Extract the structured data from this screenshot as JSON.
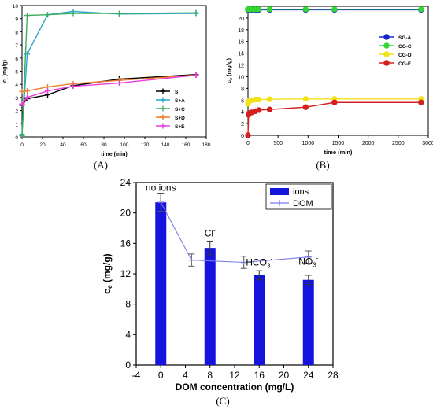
{
  "panel_labels": {
    "a": "(A)",
    "b": "(B)",
    "c": "(C)"
  },
  "chart_data": [
    {
      "id": "A",
      "type": "line",
      "xlabel": "time (min)",
      "ylabel_main": "c",
      "ylabel_sub": "t",
      "ylabel_tail": " (mg/g)",
      "xlim": [
        0,
        180
      ],
      "ylim": [
        0,
        10
      ],
      "xticks": [
        "0",
        "20",
        "40",
        "60",
        "80",
        "100",
        "120",
        "140",
        "160",
        "180"
      ],
      "yticks": [
        "0",
        "1",
        "2",
        "3",
        "4",
        "5",
        "6",
        "7",
        "8",
        "9",
        "10"
      ],
      "legend_position": "middle-right",
      "series": [
        {
          "name": "S",
          "color": "#000000",
          "x": [
            0,
            5,
            25,
            50,
            95,
            170
          ],
          "y": [
            2.4,
            2.9,
            3.2,
            3.9,
            4.4,
            4.75
          ]
        },
        {
          "name": "S+A",
          "color": "#2aa7c9",
          "x": [
            0,
            5,
            25,
            50,
            95,
            170
          ],
          "y": [
            0.2,
            6.3,
            9.3,
            9.55,
            9.35,
            9.4
          ]
        },
        {
          "name": "S+C",
          "color": "#3cad5c",
          "x": [
            0,
            5,
            25,
            50,
            95,
            170
          ],
          "y": [
            0.1,
            9.25,
            9.3,
            9.4,
            9.4,
            9.45
          ]
        },
        {
          "name": "S+D",
          "color": "#f07d2a",
          "x": [
            0,
            5,
            25,
            50,
            95,
            170
          ],
          "y": [
            3.45,
            3.5,
            3.8,
            4.05,
            4.3,
            4.7
          ]
        },
        {
          "name": "S+E",
          "color": "#e83ee0",
          "x": [
            0,
            5,
            25,
            50,
            95,
            170
          ],
          "y": [
            2.5,
            3.0,
            3.5,
            3.85,
            4.1,
            4.7
          ]
        }
      ]
    },
    {
      "id": "B",
      "type": "line",
      "xlabel": "time (min)",
      "ylabel_main": "c",
      "ylabel_sub": "e",
      "ylabel_tail": " (mg/g)",
      "xlim": [
        0,
        3000
      ],
      "ylim": [
        0,
        22
      ],
      "xticks": [
        "0",
        "500",
        "1000",
        "1500",
        "2000",
        "2500",
        "3000"
      ],
      "yticks": [
        "0",
        "2",
        "4",
        "6",
        "8",
        "10",
        "12",
        "14",
        "16",
        "18",
        "20"
      ],
      "legend_position": "middle-right",
      "series": [
        {
          "name": "SG-A",
          "color": "#1428c8",
          "x": [
            0,
            10,
            30,
            60,
            120,
            180,
            360,
            960,
            1440,
            2880
          ],
          "y": [
            21.4,
            21.4,
            21.4,
            21.4,
            21.4,
            21.4,
            21.4,
            21.4,
            21.4,
            21.4
          ]
        },
        {
          "name": "CG-C",
          "color": "#33d633",
          "x": [
            0,
            10,
            30,
            60,
            120,
            180,
            360,
            960,
            1440,
            2880
          ],
          "y": [
            21.5,
            21.5,
            21.5,
            21.5,
            21.5,
            21.5,
            21.5,
            21.5,
            21.5,
            21.5
          ]
        },
        {
          "name": "CG-D",
          "color": "#f2e21a",
          "x": [
            0,
            10,
            30,
            60,
            120,
            180,
            360,
            960,
            1440,
            2880
          ],
          "y": [
            5.4,
            5.7,
            5.9,
            6.0,
            6.1,
            6.1,
            6.15,
            6.2,
            6.2,
            6.2
          ]
        },
        {
          "name": "CG-E",
          "color": "#d42020",
          "x": [
            0,
            10,
            30,
            60,
            120,
            180,
            360,
            960,
            1440,
            2880
          ],
          "y": [
            0.0,
            3.5,
            3.8,
            3.9,
            4.1,
            4.3,
            4.4,
            4.8,
            5.6,
            5.6
          ]
        }
      ]
    },
    {
      "id": "C",
      "type": "bar",
      "xlabel": "DOM concentration (mg/L)",
      "ylabel_main": "c",
      "ylabel_sub": "e",
      "ylabel_tail": " (mg/g)",
      "xlim": [
        -4,
        28
      ],
      "ylim": [
        0,
        24
      ],
      "xticks": [
        "-4",
        "0",
        "4",
        "8",
        "12",
        "16",
        "20",
        "24",
        "28"
      ],
      "yticks": [
        "0",
        "4",
        "8",
        "12",
        "16",
        "20",
        "24"
      ],
      "legend_position": "top-right",
      "bars": {
        "name": "ions",
        "color": "#1414dc",
        "x": [
          0,
          8,
          16,
          24
        ],
        "values": [
          21.4,
          15.4,
          11.8,
          11.2
        ],
        "errors": [
          1.2,
          0.9,
          0.6,
          0.6
        ]
      },
      "line": {
        "name": "DOM",
        "color": "#7b7be6",
        "x": [
          0,
          5,
          13.5,
          24
        ],
        "values": [
          21.4,
          13.8,
          13.5,
          14.2
        ],
        "errors": [
          1.2,
          0.8,
          0.8,
          0.8
        ]
      },
      "annotations": [
        {
          "text": "no ions",
          "sup": "",
          "x": 0,
          "y": 22.9
        },
        {
          "text": "Cl",
          "sup": "-",
          "x": 8,
          "y": 16.9
        },
        {
          "text": "HCO",
          "sub": "3",
          "sup": "-",
          "x": 16,
          "y": 13.1
        },
        {
          "text": "NO",
          "sub": "3",
          "sup": "-",
          "x": 24,
          "y": 13.2
        }
      ]
    }
  ]
}
